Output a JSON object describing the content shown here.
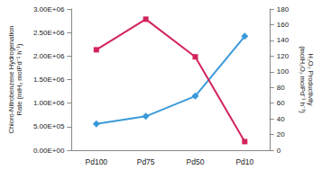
{
  "chart_data": {
    "type": "line",
    "categories": [
      "Pd100",
      "Pd75",
      "Pd50",
      "Pd10"
    ],
    "y_label": "Chloro-Nitrobenzene Hydrogenation Rate (mlH₂ molPd⁻¹ h⁻¹)",
    "y2_label": "H₂O₂ Productivity (molH₂O₂ molPd⁻¹ h⁻¹)",
    "ylim": [
      0,
      3000000
    ],
    "yticks": [
      {
        "value": 0,
        "label": "0.00E+00"
      },
      {
        "value": 500000,
        "label": "5.00E+05"
      },
      {
        "value": 1000000,
        "label": "1.00E+06"
      },
      {
        "value": 1500000,
        "label": "1.50E+06"
      },
      {
        "value": 2000000,
        "label": "2.00E+06"
      },
      {
        "value": 2500000,
        "label": "2.50E+06"
      },
      {
        "value": 3000000,
        "label": "3.00E+06"
      }
    ],
    "y2lim": [
      0,
      180
    ],
    "y2ticks": [
      0,
      20,
      40,
      60,
      80,
      100,
      120,
      140,
      160,
      180
    ],
    "grid": false,
    "series": [
      {
        "color": "#3a9ad9",
        "marker": "diamond",
        "values": [
          560000,
          720000,
          1150000,
          2420000
        ]
      },
      {
        "color": "#d2245a",
        "marker": "square",
        "axis": "y2",
        "values": [
          128,
          167,
          119,
          11
        ]
      }
    ]
  }
}
